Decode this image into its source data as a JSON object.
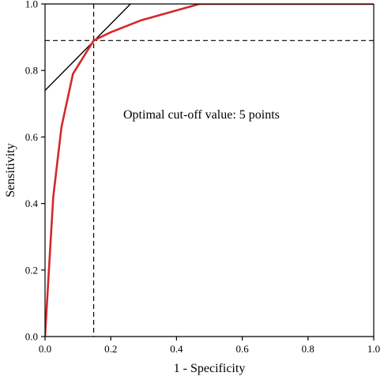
{
  "chart_data": {
    "type": "line",
    "xlabel": "1 - Specificity",
    "ylabel": "Sensitivity",
    "xlim": [
      0,
      1
    ],
    "ylim": [
      0,
      1
    ],
    "x_ticks": [
      "0.0",
      "0.2",
      "0.4",
      "0.6",
      "0.8",
      "1.0"
    ],
    "y_ticks": [
      "0.0",
      "0.2",
      "0.4",
      "0.6",
      "0.8",
      "1.0"
    ],
    "grid": false,
    "annotation": "Optimal cut-off value: 5 points",
    "series": [
      {
        "color": "#d62728",
        "x": [
          0.0,
          0.01,
          0.025,
          0.05,
          0.085,
          0.148,
          0.2,
          0.29,
          0.38,
          0.47,
          0.6,
          1.0
        ],
        "y": [
          0.0,
          0.17,
          0.42,
          0.63,
          0.79,
          0.89,
          0.915,
          0.95,
          0.975,
          1.0,
          1.0,
          1.0
        ]
      }
    ],
    "optimal_point": {
      "x": 0.148,
      "y": 0.89
    },
    "tangent_line": {
      "x": [
        0.0,
        0.26
      ],
      "y": [
        0.74,
        1.0
      ],
      "color": "#000000"
    }
  }
}
